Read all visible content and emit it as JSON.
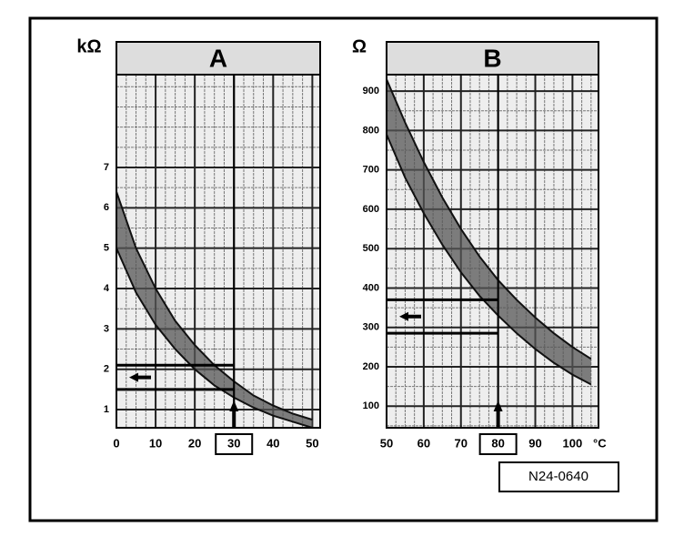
{
  "chart_data": [
    {
      "type": "band",
      "title": "A",
      "ylabel": "kΩ",
      "x": [
        0,
        5,
        10,
        15,
        20,
        25,
        30,
        35,
        40,
        45,
        50
      ],
      "series": [
        {
          "color": "#555555",
          "values": [
            6.4,
            5.0,
            4.0,
            3.2,
            2.6,
            2.1,
            1.7,
            1.35,
            1.1,
            0.9,
            0.75
          ]
        },
        {
          "color": "#555555",
          "values": [
            5.0,
            3.9,
            3.1,
            2.5,
            2.0,
            1.6,
            1.3,
            1.05,
            0.85,
            0.7,
            0.55
          ]
        }
      ],
      "xlim": [
        0,
        52
      ],
      "xticks": [
        0,
        10,
        20,
        30,
        40,
        50
      ],
      "ylim": [
        0.55,
        9.3
      ],
      "yticks": [
        1,
        2,
        3,
        4,
        5,
        6,
        7
      ],
      "grid": true,
      "ref_x": 30,
      "ref_y": [
        1.5,
        2.1
      ]
    },
    {
      "type": "band",
      "title": "B",
      "ylabel": "Ω",
      "xlabel": "°C",
      "x": [
        50,
        55,
        60,
        65,
        70,
        75,
        80,
        85,
        90,
        95,
        100,
        105
      ],
      "series": [
        {
          "color": "#555555",
          "values": [
            930,
            820,
            720,
            630,
            550,
            480,
            420,
            370,
            325,
            285,
            250,
            220
          ]
        },
        {
          "color": "#555555",
          "values": [
            790,
            680,
            590,
            510,
            440,
            380,
            330,
            285,
            245,
            210,
            180,
            155
          ]
        }
      ],
      "xlim": [
        50,
        107
      ],
      "xticks": [
        50,
        60,
        70,
        80,
        90,
        100
      ],
      "ylim": [
        45,
        942
      ],
      "yticks": [
        100,
        200,
        300,
        400,
        500,
        600,
        700,
        800,
        900
      ],
      "grid": true,
      "ref_x": 80,
      "ref_y": [
        285,
        370
      ]
    }
  ],
  "label": "N24-0640"
}
